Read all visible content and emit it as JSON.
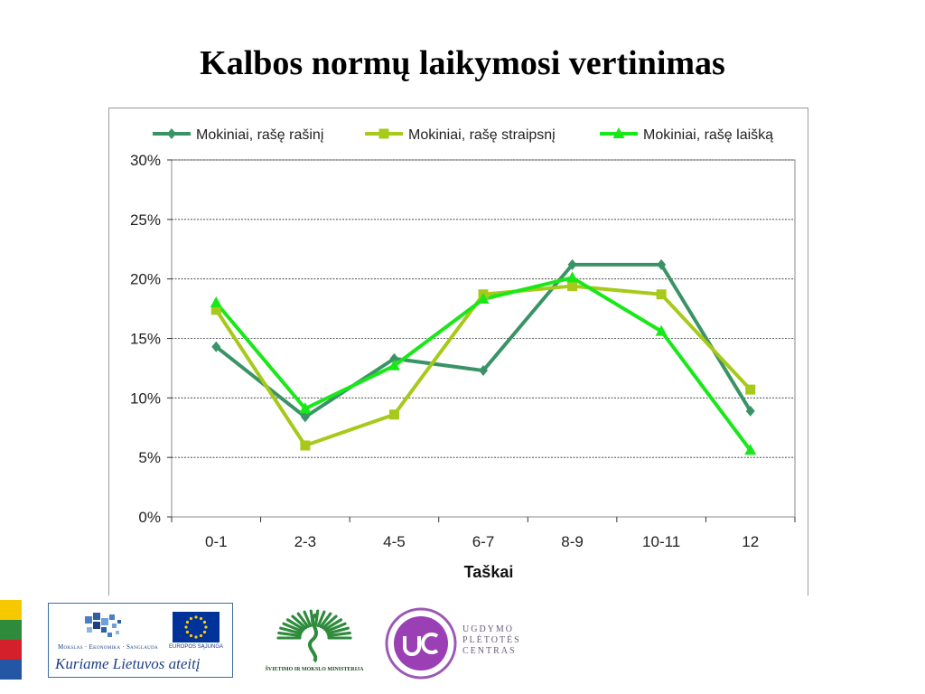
{
  "slide": {
    "title": "Kalbos normų laikymosi vertinimas"
  },
  "chart_data": {
    "type": "line",
    "title": "",
    "xlabel": "Taškai",
    "ylabel": "",
    "categories": [
      "0-1",
      "2-3",
      "4-5",
      "6-7",
      "8-9",
      "10-11",
      "12"
    ],
    "ylim": [
      0,
      30
    ],
    "yticks": [
      "0%",
      "5%",
      "10%",
      "15%",
      "20%",
      "25%",
      "30%"
    ],
    "ytick_values": [
      0,
      5,
      10,
      15,
      20,
      25,
      30
    ],
    "grid": "horizontal dashed",
    "legend_position": "top",
    "series": [
      {
        "name": "Mokiniai, rašę rašinį",
        "color": "#3a9366",
        "marker": "diamond",
        "values": [
          14.3,
          8.4,
          13.3,
          12.3,
          21.2,
          21.2,
          8.9
        ]
      },
      {
        "name": "Mokiniai, rašę straipsnį",
        "color": "#a6c91a",
        "marker": "square",
        "values": [
          17.4,
          6.0,
          8.6,
          18.7,
          19.4,
          18.7,
          10.7
        ]
      },
      {
        "name": "Mokiniai, rašę laišką",
        "color": "#18e818",
        "marker": "triangle",
        "values": [
          18.0,
          9.1,
          12.7,
          18.3,
          20.1,
          15.6,
          5.6
        ]
      }
    ]
  },
  "footer": {
    "program_name": "Mokslas · Ekonomika · Sanglauda",
    "eu_caption": "EUROPOS SĄJUNGA",
    "slogan": "Kuriame Lietuvos ateitį",
    "ministry_caption": "ŠVIETIMO IR MOKSLO MINISTERIJA",
    "upc_lines": [
      "UGDYMO",
      "PLĖTOTĖS",
      "CENTRAS"
    ],
    "stripe_colors": [
      "#f6c800",
      "#2e8b3c",
      "#d4202a",
      "#2456a6"
    ]
  }
}
